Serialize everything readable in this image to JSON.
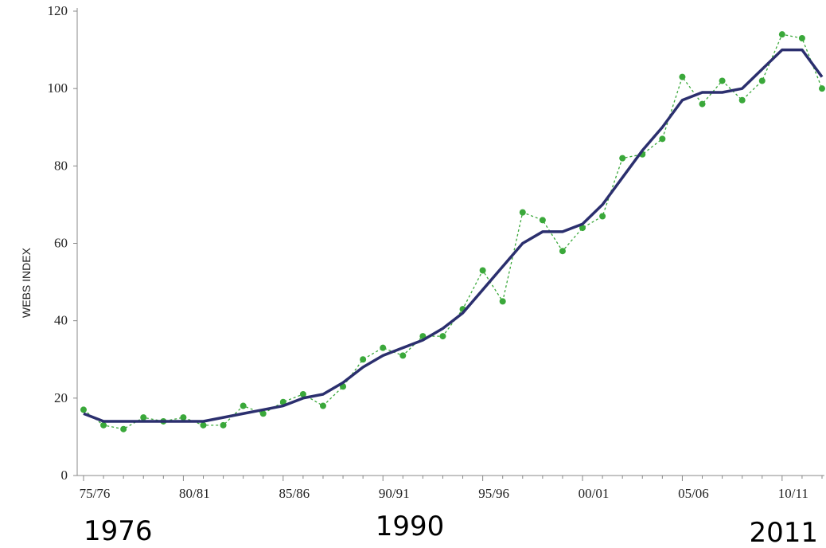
{
  "chart_data": {
    "type": "line",
    "y_label": "WEBS INDEX",
    "categories": [
      "75/76",
      null,
      null,
      null,
      null,
      "80/81",
      null,
      null,
      null,
      null,
      "85/86",
      null,
      null,
      null,
      null,
      "90/91",
      null,
      null,
      null,
      null,
      "95/96",
      null,
      null,
      null,
      null,
      "00/01",
      null,
      null,
      null,
      null,
      "05/06",
      null,
      null,
      null,
      null,
      "10/11",
      null,
      null
    ],
    "series": [
      {
        "color": "#3aa83a",
        "style": "dashed-markers",
        "values": [
          17,
          13,
          12,
          15,
          14,
          15,
          13,
          13,
          18,
          16,
          19,
          21,
          18,
          23,
          30,
          33,
          31,
          36,
          36,
          43,
          53,
          45,
          68,
          66,
          58,
          64,
          67,
          82,
          83,
          87,
          103,
          96,
          102,
          97,
          102,
          114,
          113,
          100
        ]
      },
      {
        "color": "#2b2f6e",
        "style": "solid",
        "values": [
          16,
          14,
          14,
          14,
          14,
          14,
          14,
          15,
          16,
          17,
          18,
          20,
          21,
          24,
          28,
          31,
          33,
          35,
          38,
          42,
          48,
          54,
          60,
          63,
          63,
          65,
          70,
          77,
          84,
          90,
          97,
          99,
          99,
          100,
          105,
          110,
          110,
          103
        ]
      }
    ],
    "ylim": [
      0,
      120
    ],
    "yticks": [
      0,
      20,
      40,
      60,
      80,
      100,
      120
    ],
    "annotations": [
      "1976",
      "1990",
      "2011"
    ]
  }
}
